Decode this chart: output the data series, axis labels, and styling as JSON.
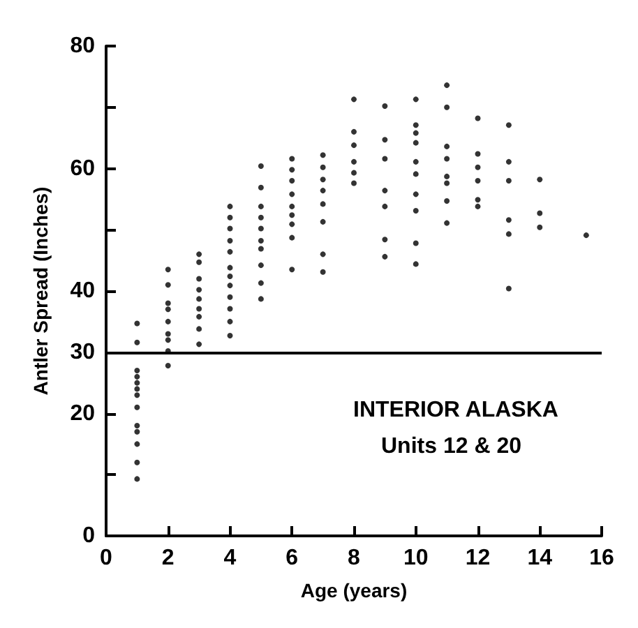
{
  "chart_data": {
    "type": "scatter",
    "xlabel": "Age (years)",
    "ylabel": "Antler Spread (Inches)",
    "annotations": [
      "INTERIOR ALASKA",
      "Units 12 & 20"
    ],
    "x": [
      1,
      1,
      1,
      1,
      1,
      1,
      1,
      1,
      1,
      1,
      1,
      1,
      1,
      2,
      2,
      2,
      2,
      2,
      2,
      2,
      2,
      2,
      3,
      3,
      3,
      3,
      3,
      3,
      3,
      3,
      3,
      4,
      4,
      4,
      4,
      4,
      4,
      4,
      4,
      4,
      4,
      4,
      4,
      5,
      5,
      5,
      5,
      5,
      5,
      5,
      5,
      5,
      5,
      6,
      6,
      6,
      6,
      6,
      6,
      6,
      6,
      6,
      7,
      7,
      7,
      7,
      7,
      7,
      7,
      7,
      8,
      8,
      8,
      8,
      8,
      8,
      9,
      9,
      9,
      9,
      9,
      9,
      9,
      10,
      10,
      10,
      10,
      10,
      10,
      10,
      10,
      10,
      10,
      11,
      11,
      11,
      11,
      11,
      11,
      11,
      11,
      12,
      12,
      12,
      12,
      12,
      12,
      13,
      13,
      13,
      13,
      13,
      13,
      14,
      14,
      14,
      15.5
    ],
    "series": [
      {
        "color": "#000000",
        "values": [
          34.7,
          31.6,
          27,
          26,
          25,
          24,
          23,
          21,
          18,
          17,
          15,
          12,
          9.3,
          43.5,
          41,
          38,
          37,
          35,
          33,
          32,
          30.2,
          27.8,
          46,
          44.7,
          42,
          40.2,
          38.7,
          37.1,
          35.8,
          33.8,
          31.3,
          53.8,
          52,
          50.2,
          48.2,
          46.4,
          43.8,
          42.4,
          40.9,
          39,
          37.1,
          35,
          32.7,
          60.4,
          56.9,
          53.8,
          52,
          50.2,
          48.2,
          46.9,
          44.2,
          41.3,
          38.7,
          61.6,
          59.8,
          58,
          55.8,
          53.8,
          52.4,
          50.9,
          48.7,
          43.5,
          62.2,
          60.2,
          58.2,
          56.4,
          54.2,
          51.3,
          46,
          43.1,
          71.3,
          66,
          63.8,
          61.1,
          59.3,
          57.6,
          70.2,
          64.7,
          61.6,
          56.4,
          53.8,
          48.4,
          45.6,
          71.3,
          67.1,
          65.8,
          64.2,
          61.1,
          59.1,
          55.8,
          53.1,
          47.8,
          44.4,
          73.6,
          70,
          63.6,
          61.6,
          58.7,
          57.6,
          54.7,
          51.1,
          68.2,
          62.4,
          60.2,
          58,
          54.9,
          53.8,
          67.1,
          61.1,
          58,
          51.6,
          49.3,
          40.4,
          58.2,
          52.7,
          50.4,
          49.1
        ]
      }
    ],
    "xlim": [
      0,
      16
    ],
    "xticks": [
      0,
      2,
      4,
      6,
      8,
      10,
      12,
      14,
      16
    ],
    "ylim": [
      0,
      80
    ],
    "yticks": [
      0,
      {
        "value": 10,
        "label": null
      },
      20,
      30,
      40,
      {
        "value": 50,
        "label": null
      },
      60,
      {
        "value": 70,
        "label": null
      },
      80
    ],
    "ref_lines": [
      {
        "axis": "y",
        "value": 30,
        "color": "#000000"
      }
    ],
    "marker": "circle",
    "grid": false
  }
}
